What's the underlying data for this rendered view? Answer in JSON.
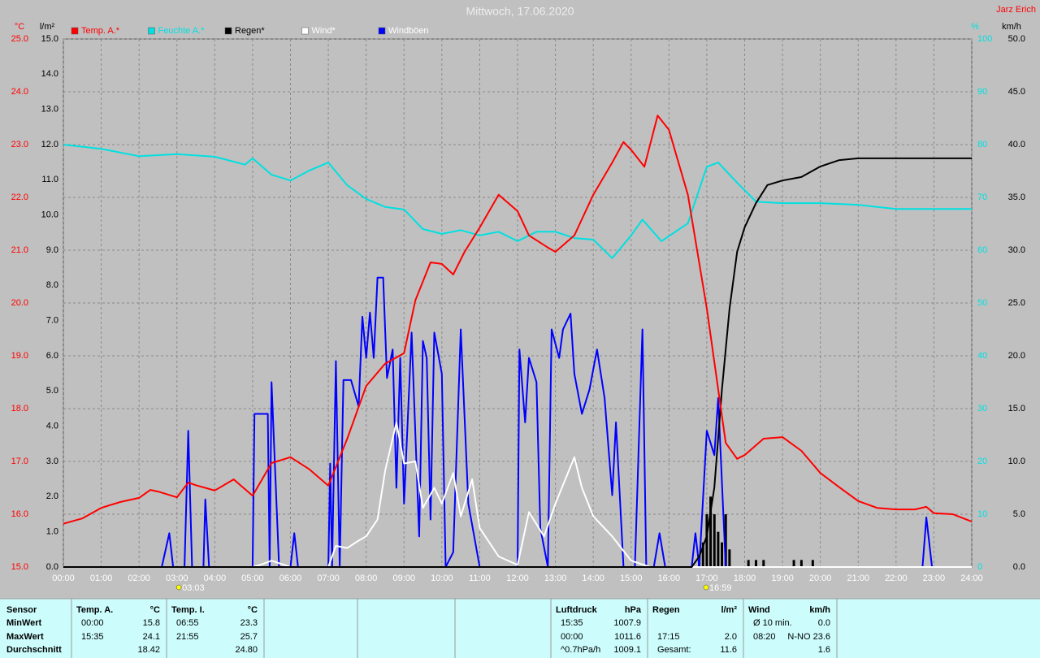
{
  "header": {
    "title": "Mittwoch, 17.06.2020",
    "author": "Jarz Erich"
  },
  "chart_data": {
    "type": "line",
    "grid": true,
    "xlim": [
      0,
      24
    ],
    "xticks": [
      {
        "value": 0,
        "label": "00:00"
      },
      {
        "value": 1,
        "label": "01:00"
      },
      {
        "value": 2,
        "label": "02:00"
      },
      {
        "value": 3,
        "label": "03:00"
      },
      {
        "value": 4,
        "label": "04:00"
      },
      {
        "value": 5,
        "label": "05:00"
      },
      {
        "value": 6,
        "label": "06:00"
      },
      {
        "value": 7,
        "label": "07:00"
      },
      {
        "value": 8,
        "label": "08:00"
      },
      {
        "value": 9,
        "label": "09:00"
      },
      {
        "value": 10,
        "label": "10:00"
      },
      {
        "value": 11,
        "label": "11:00"
      },
      {
        "value": 12,
        "label": "12:00"
      },
      {
        "value": 13,
        "label": "13:00"
      },
      {
        "value": 14,
        "label": "14:00"
      },
      {
        "value": 15,
        "label": "15:00"
      },
      {
        "value": 16,
        "label": "16:00"
      },
      {
        "value": 17,
        "label": "17:00"
      },
      {
        "value": 18,
        "label": "18:00"
      },
      {
        "value": 19,
        "label": "19:00"
      },
      {
        "value": 20,
        "label": "20:00"
      },
      {
        "value": 21,
        "label": "21:00"
      },
      {
        "value": 22,
        "label": "22:00"
      },
      {
        "value": 23,
        "label": "23:00"
      },
      {
        "value": 24,
        "label": "24:00"
      }
    ],
    "axes": [
      {
        "label": "°C",
        "color": "#ff0000",
        "lim": [
          15,
          25
        ],
        "ticks": [
          {
            "value": 15,
            "label": "15.0"
          },
          {
            "value": 16,
            "label": "16.0"
          },
          {
            "value": 17,
            "label": "17.0"
          },
          {
            "value": 18,
            "label": "18.0"
          },
          {
            "value": 19,
            "label": "19.0"
          },
          {
            "value": 20,
            "label": "20.0"
          },
          {
            "value": 21,
            "label": "21.0"
          },
          {
            "value": 22,
            "label": "22.0"
          },
          {
            "value": 23,
            "label": "23.0"
          },
          {
            "value": 24,
            "label": "24.0"
          },
          {
            "value": 25,
            "label": "25.0"
          }
        ]
      },
      {
        "label": "l/m²",
        "color": "#000000",
        "lim": [
          0,
          15
        ],
        "ticks": [
          {
            "value": 0,
            "label": "0.0"
          },
          {
            "value": 1,
            "label": "1.0"
          },
          {
            "value": 2,
            "label": "2.0"
          },
          {
            "value": 3,
            "label": "3.0"
          },
          {
            "value": 4,
            "label": "4.0"
          },
          {
            "value": 5,
            "label": "5.0"
          },
          {
            "value": 6,
            "label": "6.0"
          },
          {
            "value": 7,
            "label": "7.0"
          },
          {
            "value": 8,
            "label": "8.0"
          },
          {
            "value": 9,
            "label": "9.0"
          },
          {
            "value": 10,
            "label": "10.0"
          },
          {
            "value": 11,
            "label": "11.0"
          },
          {
            "value": 12,
            "label": "12.0"
          },
          {
            "value": 13,
            "label": "13.0"
          },
          {
            "value": 14,
            "label": "14.0"
          },
          {
            "value": 15,
            "label": "15.0"
          }
        ]
      },
      {
        "label": "%",
        "color": "#00e0e0",
        "lim": [
          0,
          100
        ],
        "ticks": [
          0,
          10,
          20,
          30,
          40,
          50,
          60,
          70,
          80,
          90,
          100
        ]
      },
      {
        "label": "km/h",
        "color": "#000000",
        "lim": [
          0,
          50
        ],
        "ticks": [
          {
            "value": 0,
            "label": "0.0"
          },
          {
            "value": 5,
            "label": "5.0"
          },
          {
            "value": 10,
            "label": "10.0"
          },
          {
            "value": 15,
            "label": "15.0"
          },
          {
            "value": 20,
            "label": "20.0"
          },
          {
            "value": 25,
            "label": "25.0"
          },
          {
            "value": 30,
            "label": "30.0"
          },
          {
            "value": 35,
            "label": "35.0"
          },
          {
            "value": 40,
            "label": "40.0"
          },
          {
            "value": 45,
            "label": "45.0"
          },
          {
            "value": 50,
            "label": "50.0"
          }
        ]
      }
    ],
    "series": [
      {
        "name": "Temp. A.*",
        "color": "#ff0000",
        "label_color": "#ff0000",
        "axis": 0,
        "x": [
          0,
          0.5,
          1,
          1.5,
          2,
          2.3,
          2.5,
          3,
          3.3,
          3.5,
          4,
          4.5,
          5,
          5.5,
          6,
          6.5,
          7,
          7.5,
          8,
          8.5,
          9,
          9.3,
          9.7,
          10,
          10.3,
          10.6,
          11,
          11.5,
          12,
          12.3,
          12.8,
          13,
          13.5,
          14,
          14.5,
          14.8,
          15,
          15.35,
          15.7,
          16,
          16.5,
          17,
          17.5,
          17.8,
          18,
          18.5,
          19,
          19.5,
          20,
          20.5,
          21,
          21.5,
          22,
          22.5,
          22.8,
          23,
          23.5,
          24
        ],
        "values": [
          15.82,
          15.92,
          16.12,
          16.23,
          16.31,
          16.46,
          16.43,
          16.32,
          16.6,
          16.55,
          16.45,
          16.66,
          16.35,
          16.97,
          17.08,
          16.85,
          16.54,
          17.43,
          18.43,
          18.85,
          19.05,
          20.05,
          20.77,
          20.74,
          20.54,
          20.97,
          21.43,
          22.05,
          21.74,
          21.28,
          21.05,
          20.97,
          21.28,
          22.05,
          22.66,
          23.05,
          22.9,
          22.58,
          23.55,
          23.28,
          22.05,
          19.9,
          17.35,
          17.05,
          17.12,
          17.43,
          17.46,
          17.2,
          16.78,
          16.51,
          16.25,
          16.12,
          16.09,
          16.09,
          16.14,
          16.02,
          16.0,
          15.86
        ]
      },
      {
        "name": "Feuchte A.*",
        "color": "#00e0e0",
        "label_color": "#00e0e0",
        "axis": 2,
        "x": [
          0,
          1,
          2,
          3,
          4,
          4.8,
          5,
          5.5,
          6,
          6.5,
          7,
          7.5,
          8,
          8.5,
          9,
          9.5,
          10,
          10.5,
          11,
          11.5,
          12,
          12.5,
          13,
          13.5,
          14,
          14.5,
          15,
          15.3,
          15.8,
          16.5,
          17,
          17.3,
          17.8,
          18.3,
          19,
          20,
          21,
          21.5,
          22,
          24
        ],
        "values": [
          80,
          79.2,
          77.8,
          78.2,
          77.7,
          76.2,
          77.4,
          74.3,
          73.2,
          75.1,
          76.6,
          72.3,
          69.7,
          68.2,
          67.7,
          64,
          63.1,
          63.8,
          62.8,
          63.5,
          61.7,
          63.5,
          63.5,
          62.3,
          62,
          58.5,
          62.8,
          65.8,
          61.7,
          65.1,
          75.8,
          76.6,
          72.8,
          69.2,
          68.9,
          68.9,
          68.6,
          68.2,
          67.8,
          67.8
        ]
      },
      {
        "name": "Regen*",
        "color": "#000000",
        "label_color": "#000000",
        "axis": 1,
        "x": [
          0,
          16.6,
          16.8,
          17,
          17.2,
          17.4,
          17.6,
          17.8,
          18,
          18.3,
          18.6,
          19,
          19.5,
          20,
          20.5,
          21,
          24
        ],
        "values": [
          0,
          0,
          0.3,
          0.88,
          2.26,
          5.03,
          7.34,
          8.95,
          9.65,
          10.34,
          10.85,
          10.98,
          11.08,
          11.38,
          11.56,
          11.61,
          11.61
        ],
        "bars": {
          "x": [
            16.8,
            16.9,
            17,
            17.1,
            17.2,
            17.3,
            17.4,
            17.5,
            17.6,
            18.1,
            18.3,
            18.5,
            19.3,
            19.5,
            19.8
          ],
          "values": [
            0.3,
            0.7,
            1.5,
            2.0,
            1.5,
            1.0,
            0.7,
            1.5,
            0.5,
            0.2,
            0.2,
            0.2,
            0.2,
            0.2,
            0.2
          ]
        }
      },
      {
        "name": "Wind*",
        "color": "#ffffff",
        "label_color": "#ffffff",
        "axis": 3,
        "x": [
          0,
          5,
          5.2,
          5.5,
          6,
          7,
          7.2,
          7.5,
          7.8,
          8,
          8.3,
          8.5,
          8.8,
          9,
          9.3,
          9.5,
          9.8,
          10,
          10.3,
          10.5,
          10.8,
          11,
          11.5,
          12,
          12.3,
          12.7,
          13,
          13.5,
          13.7,
          14,
          14.5,
          15,
          15.5,
          24
        ],
        "values": [
          0,
          0,
          0.2,
          0.6,
          0,
          0,
          2,
          1.8,
          2.5,
          2.9,
          4.5,
          9.1,
          13.7,
          9.8,
          10,
          5.6,
          7.5,
          6,
          8.9,
          4.8,
          8.3,
          3.7,
          1,
          0.2,
          5.2,
          2.9,
          6,
          10.4,
          7.5,
          4.8,
          2.9,
          0.6,
          0,
          0
        ]
      },
      {
        "name": "Windböen",
        "color": "#0000ff",
        "label_color": "#ffffff",
        "axis": 3,
        "x": [
          0,
          2.6,
          2.8,
          2.9,
          3.2,
          3.3,
          3.4,
          3.7,
          3.75,
          3.85,
          5,
          5.05,
          5.4,
          5.45,
          5.5,
          5.7,
          6,
          6.1,
          6.2,
          7,
          7.05,
          7.1,
          7.2,
          7.3,
          7.4,
          7.6,
          7.8,
          7.9,
          8,
          8.1,
          8.2,
          8.3,
          8.45,
          8.55,
          8.7,
          8.8,
          8.9,
          9,
          9.2,
          9.4,
          9.5,
          9.6,
          9.7,
          9.8,
          10,
          10.1,
          10.3,
          10.5,
          10.7,
          11,
          12,
          12.05,
          12.2,
          12.3,
          12.5,
          12.6,
          12.8,
          12.9,
          13.1,
          13.2,
          13.4,
          13.5,
          13.7,
          13.9,
          14.1,
          14.3,
          14.5,
          14.6,
          14.8,
          15.1,
          15.3,
          15.4,
          15.6,
          15.75,
          15.9,
          16.6,
          16.7,
          16.8,
          17,
          17.2,
          17.3,
          17.5,
          22.7,
          22.8,
          22.95,
          24
        ],
        "values": [
          0,
          0,
          3.2,
          0,
          0,
          12.9,
          0,
          0,
          6.4,
          0,
          0,
          14.5,
          14.5,
          0,
          17.5,
          0,
          0,
          3.2,
          0,
          0,
          9.8,
          0,
          19.5,
          0,
          17.7,
          17.7,
          15.2,
          23.7,
          19.8,
          24.1,
          19.8,
          27.4,
          27.4,
          17.9,
          20.6,
          7.5,
          19.8,
          6,
          22.2,
          2.9,
          21.4,
          19.8,
          4.5,
          22.2,
          18.3,
          0,
          1.4,
          22.5,
          6,
          0,
          0,
          20.6,
          13.7,
          19.8,
          17.5,
          3.7,
          0,
          22.5,
          19.8,
          22.5,
          24,
          18.3,
          14.5,
          16.8,
          20.6,
          16,
          6.8,
          13.7,
          0,
          0,
          22.5,
          0,
          0,
          3.2,
          0,
          0,
          3.2,
          0,
          12.9,
          10.6,
          16,
          0,
          0,
          4.7,
          0,
          0
        ]
      }
    ],
    "annotations": [
      {
        "x": 3.05,
        "label": "03:03"
      },
      {
        "x": 16.98,
        "label": "16:59"
      }
    ]
  },
  "table": {
    "row_labels": [
      "Sensor",
      "MinWert",
      "MaxWert",
      "Durchschnitt"
    ],
    "groups": [
      {
        "name": "Temp. A.",
        "unit": "°C",
        "rows": [
          [
            "00:00",
            "15.8"
          ],
          [
            "15:35",
            "24.1"
          ],
          [
            "18.42"
          ]
        ]
      },
      {
        "name": "Temp. I.",
        "unit": "°C",
        "rows": [
          [
            "06:55",
            "23.3"
          ],
          [
            "21:55",
            "25.7"
          ],
          [
            "24.80"
          ]
        ]
      },
      {
        "name": "Luftdruck",
        "unit": "hPa",
        "rows": [
          [
            "15:35",
            "1007.9"
          ],
          [
            "00:00",
            "1011.6"
          ],
          [
            "^0.7hPa/h",
            "1009.1"
          ]
        ]
      },
      {
        "name": "Regen",
        "unit": "l/m²",
        "rows": [
          null,
          [
            "17:15",
            "2.0"
          ],
          [
            "Gesamt:",
            "11.6"
          ]
        ]
      },
      {
        "name": "Wind",
        "unit": "km/h",
        "rows": [
          [
            "Ø 10 min.",
            "0.0"
          ],
          [
            "08:20",
            "N-NO 23.6"
          ],
          [
            "1.6"
          ]
        ]
      }
    ]
  }
}
